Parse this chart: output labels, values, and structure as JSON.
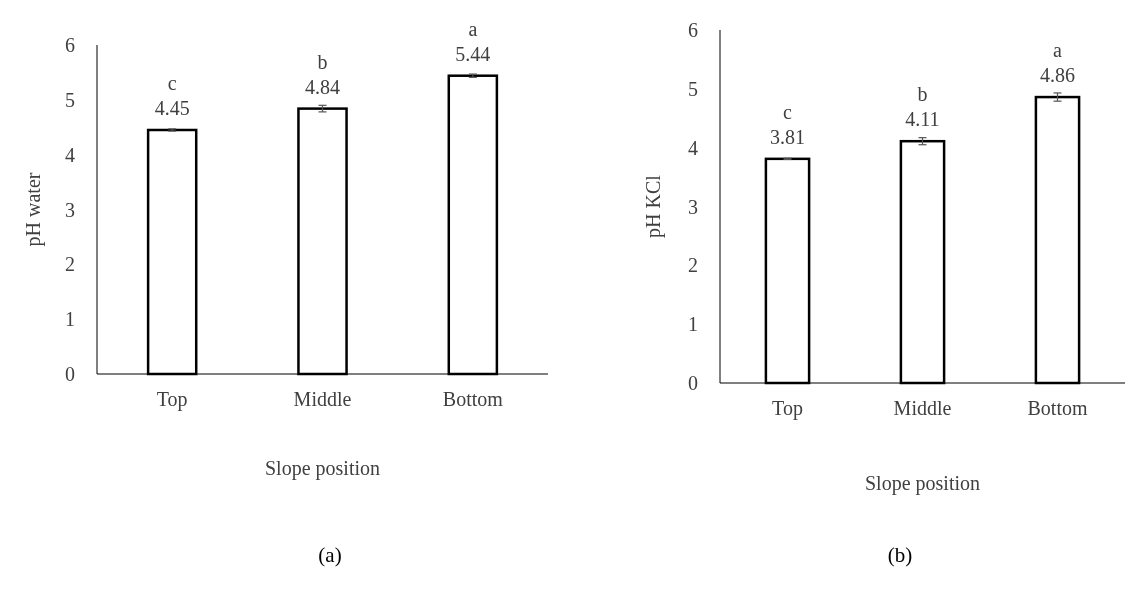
{
  "chart_data": [
    {
      "type": "bar",
      "xlabel": "Slope position",
      "ylabel": "pH water",
      "categories": [
        "Top",
        "Middle",
        "Bottom"
      ],
      "series": [
        {
          "color": "#ffffff",
          "values": [
            4.45,
            4.84,
            5.44
          ],
          "errors": [
            0.02,
            0.06,
            0.03
          ]
        }
      ],
      "ylim": [
        0,
        6
      ],
      "yticks": [
        0,
        1,
        2,
        3,
        4,
        5,
        6
      ],
      "grid": false,
      "data_labels": true,
      "annotations": [
        {
          "text": "c",
          "x": "Top",
          "y": 4.45
        },
        {
          "text": "b",
          "x": "Middle",
          "y": 4.84
        },
        {
          "text": "a",
          "x": "Bottom",
          "y": 5.44
        },
        "(a)"
      ]
    },
    {
      "type": "bar",
      "xlabel": "Slope position",
      "ylabel": "pH KCl",
      "categories": [
        "Top",
        "Middle",
        "Bottom"
      ],
      "series": [
        {
          "color": "#ffffff",
          "values": [
            3.81,
            4.11,
            4.86
          ],
          "errors": [
            0.01,
            0.06,
            0.07
          ]
        }
      ],
      "ylim": [
        0,
        6
      ],
      "yticks": [
        0,
        1,
        2,
        3,
        4,
        5,
        6
      ],
      "grid": false,
      "data_labels": true,
      "annotations": [
        {
          "text": "c",
          "x": "Top",
          "y": 3.81
        },
        {
          "text": "b",
          "x": "Middle",
          "y": 4.11
        },
        {
          "text": "a",
          "x": "Bottom",
          "y": 4.86
        },
        "(b)"
      ]
    }
  ]
}
